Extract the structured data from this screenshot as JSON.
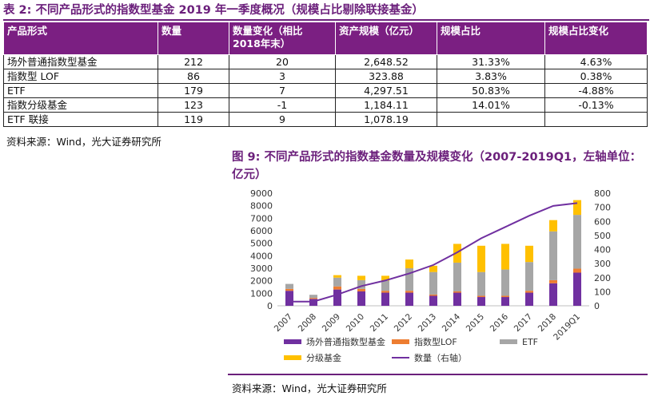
{
  "table": {
    "title": "表 2:  不同产品形式的指数型基金 2019 年一季度概况（规模占比剔除联接基金）",
    "headers": [
      "产品形式",
      "数量",
      "数量变化（相比 2018年末）",
      "资产规模（亿元）",
      "规模占比",
      "规模占比变化"
    ],
    "rows": [
      [
        "场外普通指数型基金",
        "212",
        "20",
        "2,648.52",
        "31.33%",
        "4.63%"
      ],
      [
        "指数型 LOF",
        "86",
        "3",
        "323.88",
        "3.83%",
        "0.38%"
      ],
      [
        "ETF",
        "179",
        "7",
        "4,297.51",
        "50.83%",
        "-4.88%"
      ],
      [
        "指数分级基金",
        "123",
        "-1",
        "1,184.11",
        "14.01%",
        "-0.13%"
      ],
      [
        "ETF 联接",
        "119",
        "9",
        "1,078.19",
        "",
        ""
      ]
    ],
    "source": "资料来源：Wind，光大证券研究所"
  },
  "figure": {
    "title": "图 9:  不同产品形式的指数基金数量及规模变化（2007-2019Q1，左轴单位：亿元）",
    "source": "资料来源：Wind，光大证券研究所"
  },
  "chart_data": {
    "type": "bar",
    "stacked": true,
    "categories": [
      "2007",
      "2008",
      "2009",
      "2010",
      "2011",
      "2012",
      "2013",
      "2014",
      "2015",
      "2016",
      "2017",
      "2018",
      "2019Q1"
    ],
    "series": [
      {
        "name": "场外普通指数型基金",
        "color": "#7030a0",
        "values": [
          1200,
          550,
          1300,
          1150,
          1050,
          1050,
          800,
          1050,
          700,
          700,
          1050,
          1800,
          2650
        ]
      },
      {
        "name": "指数型LOF",
        "color": "#ed7d31",
        "values": [
          150,
          80,
          250,
          200,
          150,
          150,
          100,
          100,
          100,
          100,
          150,
          250,
          320
        ]
      },
      {
        "name": "ETF",
        "color": "#a6a6a6",
        "values": [
          400,
          250,
          700,
          700,
          800,
          1800,
          1800,
          2300,
          1900,
          2100,
          2300,
          3900,
          4300
        ]
      },
      {
        "name": "分级基金",
        "color": "#ffc000",
        "values": [
          0,
          0,
          200,
          350,
          400,
          700,
          500,
          1500,
          2100,
          2050,
          1300,
          900,
          1180
        ]
      },
      {
        "name": "数量（右轴）",
        "color": "#7030a0",
        "axis": "right",
        "type": "line",
        "values": [
          30,
          30,
          80,
          140,
          180,
          230,
          290,
          380,
          480,
          560,
          640,
          710,
          730
        ]
      }
    ],
    "yleft": {
      "min": 0,
      "max": 9000,
      "step": 1000,
      "ticks": [
        "0",
        "1000",
        "2000",
        "3000",
        "4000",
        "5000",
        "6000",
        "7000",
        "8000",
        "9000"
      ]
    },
    "yright": {
      "min": 0,
      "max": 800,
      "step": 100,
      "ticks": [
        "0",
        "100",
        "200",
        "300",
        "400",
        "500",
        "600",
        "700",
        "800"
      ]
    },
    "legend": "bottom",
    "grid": false
  }
}
